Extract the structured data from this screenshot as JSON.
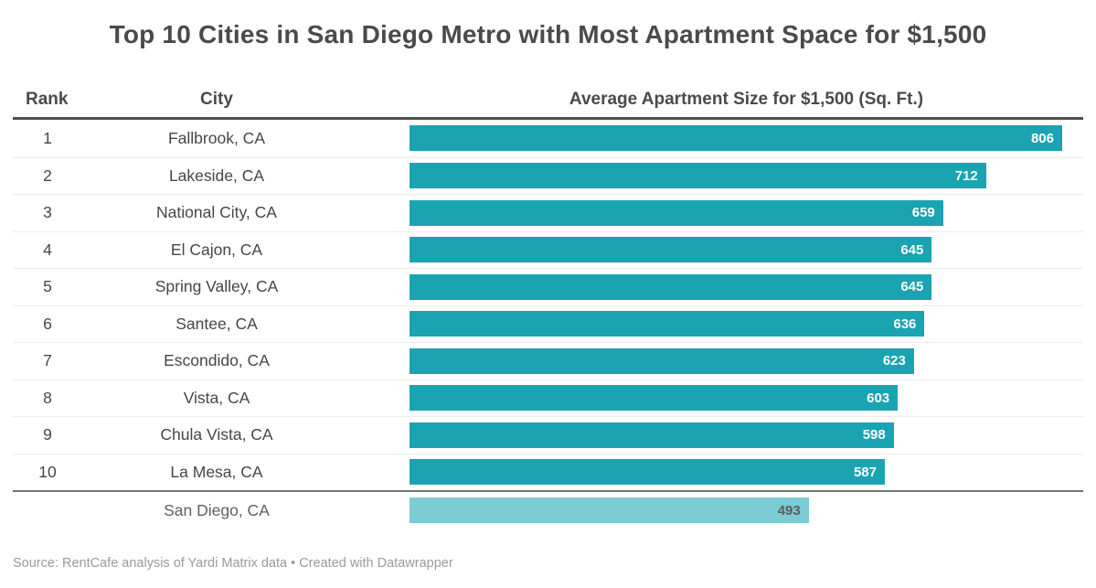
{
  "title": "Top 10 Cities in San Diego Metro with Most Apartment Space for $1,500",
  "columns": {
    "rank": "Rank",
    "city": "City",
    "value": "Average Apartment Size for $1,500 (Sq. Ft.)"
  },
  "footer": "Source: RentCafe analysis of Yardi Matrix data • Created with Datawrapper",
  "colors": {
    "bar": "#1aa3b0",
    "bar_highlight": "#7dcbd4",
    "title_text": "#4a4a4a",
    "body_text": "#464646",
    "bar_label": "#ffffff",
    "highlight_bar_label": "#5d5d5d",
    "header_rule": "#4f4f4f",
    "row_divider": "#ececec",
    "highlight_divider": "#757575",
    "footer_text": "#9b9b9b"
  },
  "chart_data": {
    "type": "bar",
    "title": "Top 10 Cities in San Diego Metro with Most Apartment Space for $1,500",
    "xlabel": "Average Apartment Size for $1,500 (Sq. Ft.)",
    "ylabel": "City",
    "axis_max": 806,
    "grid": false,
    "legend": false,
    "orientation": "horizontal",
    "categories": [
      "Fallbrook, CA",
      "Lakeside, CA",
      "National City, CA",
      "El Cajon, CA",
      "Spring Valley, CA",
      "Santee, CA",
      "Escondido, CA",
      "Vista, CA",
      "Chula Vista, CA",
      "La Mesa, CA",
      "San Diego, CA"
    ],
    "values": [
      806,
      712,
      659,
      645,
      645,
      636,
      623,
      603,
      598,
      587,
      493
    ],
    "rows": [
      {
        "rank": "1",
        "city": "Fallbrook, CA",
        "value": 806,
        "highlight": false
      },
      {
        "rank": "2",
        "city": "Lakeside, CA",
        "value": 712,
        "highlight": false
      },
      {
        "rank": "3",
        "city": "National City, CA",
        "value": 659,
        "highlight": false
      },
      {
        "rank": "4",
        "city": "El Cajon, CA",
        "value": 645,
        "highlight": false
      },
      {
        "rank": "5",
        "city": "Spring Valley, CA",
        "value": 645,
        "highlight": false
      },
      {
        "rank": "6",
        "city": "Santee, CA",
        "value": 636,
        "highlight": false
      },
      {
        "rank": "7",
        "city": "Escondido, CA",
        "value": 623,
        "highlight": false
      },
      {
        "rank": "8",
        "city": "Vista, CA",
        "value": 603,
        "highlight": false
      },
      {
        "rank": "9",
        "city": "Chula Vista, CA",
        "value": 598,
        "highlight": false
      },
      {
        "rank": "10",
        "city": "La Mesa, CA",
        "value": 587,
        "highlight": false
      },
      {
        "rank": "",
        "city": "San Diego, CA",
        "value": 493,
        "highlight": true
      }
    ]
  }
}
